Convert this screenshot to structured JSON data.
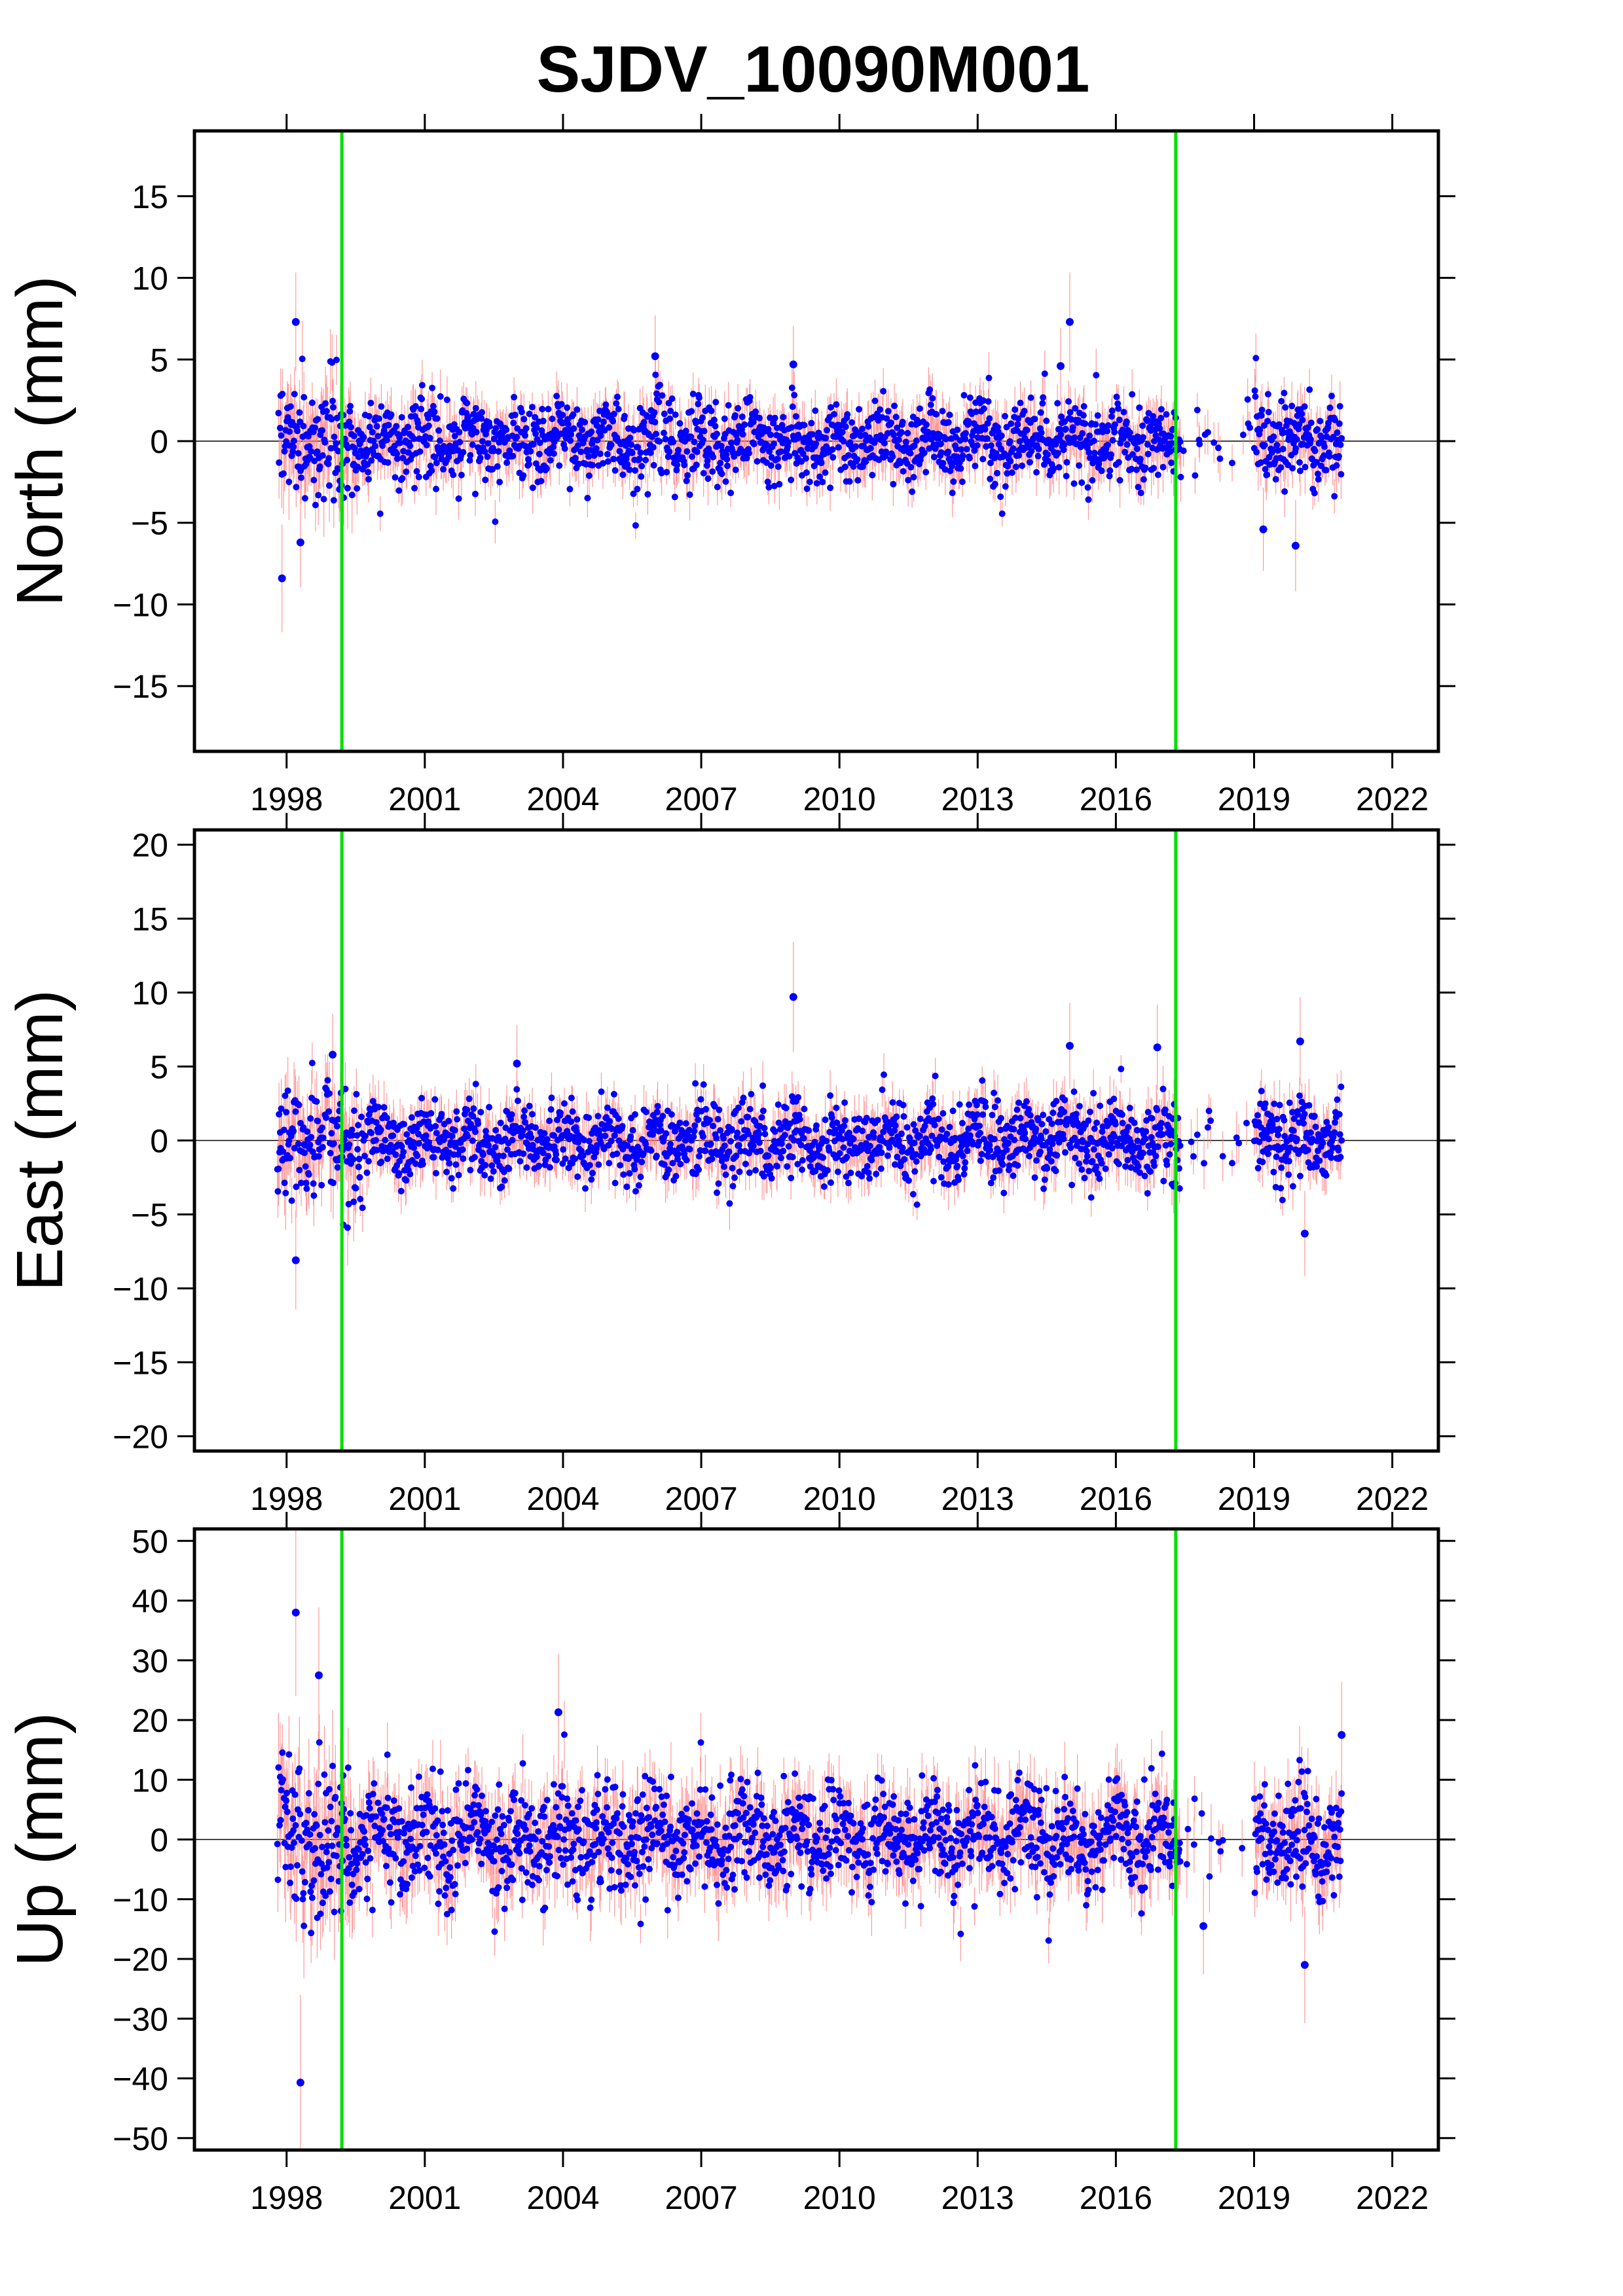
{
  "title": "SJDV_10090M001",
  "chart_data": [
    {
      "type": "scatter",
      "ylabel": "North (mm)",
      "xlim": [
        1996,
        2023
      ],
      "ylim": [
        -19,
        19
      ],
      "xticks": [
        1998,
        2001,
        2004,
        2007,
        2010,
        2013,
        2016,
        2019,
        2022
      ],
      "yticks": [
        -15,
        -10,
        -5,
        0,
        5,
        10,
        15
      ],
      "zero_line": true,
      "vlines": [
        1999.2,
        2017.3
      ],
      "data_span": [
        1997.8,
        2020.9
      ],
      "gaps": [
        [
          2017.4,
          2019.0
        ]
      ],
      "point_color": "#0000ff",
      "errorbar_color": "#ff8080",
      "vline_color": "#00e000",
      "scatter_sd": 1.2,
      "outliers": [
        [
          1997.9,
          -8.4
        ],
        [
          1998.2,
          7.3
        ],
        [
          1998.3,
          -6.2
        ],
        [
          2006.0,
          5.2
        ],
        [
          2009.0,
          4.7
        ],
        [
          2014.8,
          4.6
        ],
        [
          2015.0,
          7.3
        ],
        [
          2019.9,
          -6.4
        ],
        [
          2019.2,
          -5.4
        ]
      ]
    },
    {
      "type": "scatter",
      "ylabel": "East (mm)",
      "xlim": [
        1996,
        2023
      ],
      "ylim": [
        -21,
        21
      ],
      "xticks": [
        1998,
        2001,
        2004,
        2007,
        2010,
        2013,
        2016,
        2019,
        2022
      ],
      "yticks": [
        -20,
        -15,
        -10,
        -5,
        0,
        5,
        10,
        15,
        20
      ],
      "zero_line": true,
      "vlines": [
        1999.2,
        2017.3
      ],
      "data_span": [
        1997.8,
        2020.9
      ],
      "gaps": [
        [
          2017.4,
          2019.0
        ]
      ],
      "point_color": "#0000ff",
      "errorbar_color": "#ff8080",
      "vline_color": "#00e000",
      "scatter_sd": 1.3,
      "outliers": [
        [
          1998.2,
          -8.1
        ],
        [
          2003.0,
          5.2
        ],
        [
          2009.0,
          9.7
        ],
        [
          2015.0,
          6.4
        ],
        [
          2016.9,
          6.3
        ],
        [
          2020.0,
          6.7
        ],
        [
          2020.1,
          -6.3
        ],
        [
          1999.0,
          5.8
        ]
      ]
    },
    {
      "type": "scatter",
      "ylabel": "Up (mm)",
      "xlim": [
        1996,
        2023
      ],
      "ylim": [
        -52,
        52
      ],
      "xticks": [
        1998,
        2001,
        2004,
        2007,
        2010,
        2013,
        2016,
        2019,
        2022
      ],
      "yticks": [
        -50,
        -40,
        -30,
        -20,
        -10,
        0,
        10,
        20,
        30,
        40,
        50
      ],
      "zero_line": true,
      "vlines": [
        1999.2,
        2017.3
      ],
      "data_span": [
        1997.8,
        2020.9
      ],
      "gaps": [
        [
          2017.4,
          2019.0
        ]
      ],
      "point_color": "#0000ff",
      "errorbar_color": "#ff8080",
      "vline_color": "#00e000",
      "scatter_sd": 4.5,
      "outliers": [
        [
          1998.2,
          38.0
        ],
        [
          1998.3,
          -40.7
        ],
        [
          1998.7,
          27.5
        ],
        [
          2003.9,
          21.3
        ],
        [
          2017.9,
          -14.5
        ],
        [
          2020.1,
          -21.0
        ],
        [
          2020.9,
          17.5
        ]
      ]
    }
  ]
}
